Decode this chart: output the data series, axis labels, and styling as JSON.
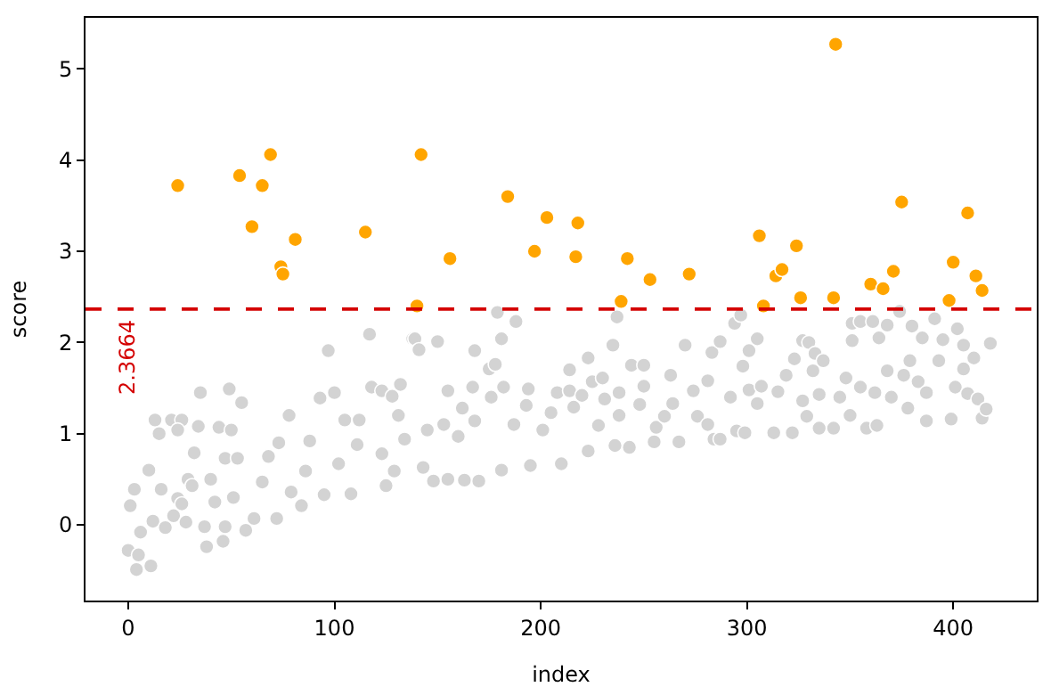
{
  "chart_data": {
    "type": "scatter",
    "xlabel": "index",
    "ylabel": "score",
    "xlim": [
      -20.7,
      440.5
    ],
    "ylim": [
      -0.83,
      5.56
    ],
    "xticks": [
      0,
      100,
      200,
      300,
      400
    ],
    "yticks": [
      0,
      1,
      2,
      3,
      4,
      5
    ],
    "marker": "circle",
    "ref_lines": [
      {
        "axis": "y",
        "value": 2.3664,
        "label": "2.3664",
        "color": "#d40000",
        "line_style": "dashed"
      }
    ],
    "series": [
      {
        "color": "#d3d3d3",
        "x": [
          0,
          5,
          4,
          11,
          1,
          3,
          6,
          10,
          12,
          13,
          15,
          16,
          18,
          22,
          24,
          21,
          26,
          24,
          26,
          28,
          29,
          31,
          32,
          34,
          35,
          38,
          37,
          40,
          42,
          44,
          46,
          47,
          49,
          47,
          50,
          53,
          55,
          51,
          57,
          61,
          65,
          68,
          72,
          73,
          78,
          79,
          84,
          86,
          88,
          93,
          97,
          95,
          100,
          102,
          105,
          108,
          111,
          112,
          117,
          118,
          123,
          128,
          132,
          131,
          134,
          129,
          125,
          123,
          138,
          139,
          141,
          150,
          143,
          148,
          155,
          163,
          170,
          181,
          195,
          210,
          223,
          243,
          255,
          267,
          284,
          145,
          153,
          160,
          168,
          187,
          201,
          155,
          162,
          167,
          168,
          175,
          178,
          176,
          182,
          181,
          179,
          188,
          193,
          194,
          205,
          208,
          214,
          214,
          216,
          220,
          223,
          225,
          230,
          231,
          228,
          236,
          235,
          237,
          238,
          238,
          244,
          250,
          248,
          250,
          256,
          260,
          263,
          264,
          270,
          274,
          276,
          283,
          281,
          281,
          287,
          294,
          297,
          287,
          292,
          295,
          299,
          301,
          305,
          298,
          301,
          305,
          307,
          313,
          315,
          319,
          323,
          322,
          327,
          330,
          332,
          333,
          337,
          327,
          329,
          335,
          335,
          342,
          345,
          348,
          351,
          351,
          355,
          361,
          364,
          368,
          350,
          358,
          363,
          355,
          362,
          368,
          370,
          376,
          379,
          374,
          380,
          383,
          385,
          391,
          393,
          395,
          402,
          405,
          410,
          418,
          378,
          387,
          387,
          399,
          401,
          405,
          407,
          412,
          414,
          416
        ],
        "values": [
          -0.28,
          -0.33,
          -0.49,
          -0.45,
          0.21,
          0.39,
          -0.08,
          0.6,
          0.04,
          1.15,
          1.0,
          0.39,
          -0.03,
          0.1,
          0.29,
          1.15,
          1.15,
          1.04,
          0.23,
          0.03,
          0.5,
          0.43,
          0.79,
          1.08,
          1.45,
          -0.24,
          -0.02,
          0.5,
          0.25,
          1.07,
          -0.18,
          -0.02,
          1.49,
          0.73,
          1.04,
          0.73,
          1.34,
          0.3,
          -0.06,
          0.07,
          0.47,
          0.75,
          0.07,
          0.9,
          1.2,
          0.36,
          0.21,
          0.59,
          0.92,
          1.39,
          1.91,
          0.33,
          1.45,
          0.67,
          1.15,
          0.34,
          0.88,
          1.15,
          2.09,
          1.51,
          1.47,
          1.41,
          1.54,
          1.2,
          0.94,
          0.59,
          0.43,
          0.78,
          2.04,
          2.04,
          1.92,
          2.01,
          0.63,
          0.48,
          0.5,
          0.49,
          0.48,
          0.6,
          0.65,
          0.67,
          0.81,
          0.85,
          0.91,
          0.91,
          0.94,
          1.04,
          1.1,
          0.97,
          1.14,
          1.1,
          1.04,
          1.47,
          1.28,
          1.51,
          1.91,
          1.71,
          1.76,
          1.4,
          1.51,
          2.04,
          2.33,
          2.23,
          1.31,
          1.49,
          1.23,
          1.45,
          1.7,
          1.47,
          1.29,
          1.42,
          1.83,
          1.57,
          1.61,
          1.38,
          1.09,
          0.87,
          1.97,
          2.28,
          1.45,
          1.2,
          1.75,
          1.75,
          1.32,
          1.52,
          1.07,
          1.19,
          1.64,
          1.33,
          1.97,
          1.47,
          1.19,
          1.89,
          1.58,
          1.1,
          2.01,
          2.21,
          2.3,
          0.94,
          1.4,
          1.03,
          1.01,
          1.91,
          2.04,
          1.74,
          1.48,
          1.33,
          1.52,
          1.01,
          1.46,
          1.64,
          1.82,
          1.01,
          2.02,
          2.0,
          1.69,
          1.88,
          1.8,
          1.36,
          1.19,
          1.43,
          1.06,
          1.06,
          1.4,
          1.61,
          2.21,
          2.02,
          2.23,
          2.23,
          2.05,
          2.19,
          1.2,
          1.06,
          1.09,
          1.51,
          1.45,
          1.69,
          1.4,
          1.64,
          1.8,
          2.34,
          2.18,
          1.57,
          2.05,
          2.26,
          1.8,
          2.03,
          2.15,
          1.97,
          1.83,
          1.99,
          1.28,
          1.14,
          1.45,
          1.16,
          1.51,
          1.71,
          1.44,
          1.38,
          1.17,
          1.27
        ]
      },
      {
        "color": "#ffa500",
        "x": [
          24,
          54,
          65,
          69,
          60,
          81,
          74,
          75,
          115,
          140,
          142,
          156,
          184,
          203,
          218,
          197,
          217,
          242,
          253,
          272,
          239,
          343,
          306,
          324,
          314,
          317,
          308,
          326,
          342,
          360,
          366,
          371,
          375,
          407,
          400,
          411,
          414,
          398
        ],
        "values": [
          3.72,
          3.83,
          3.72,
          4.06,
          3.27,
          3.13,
          2.83,
          2.75,
          3.21,
          2.4,
          4.06,
          2.92,
          3.6,
          3.37,
          3.31,
          3.0,
          2.94,
          2.92,
          2.69,
          2.75,
          2.45,
          5.27,
          3.17,
          3.06,
          2.73,
          2.8,
          2.4,
          2.49,
          2.49,
          2.64,
          2.59,
          2.78,
          3.54,
          3.42,
          2.88,
          2.73,
          2.57,
          2.46
        ]
      }
    ]
  }
}
